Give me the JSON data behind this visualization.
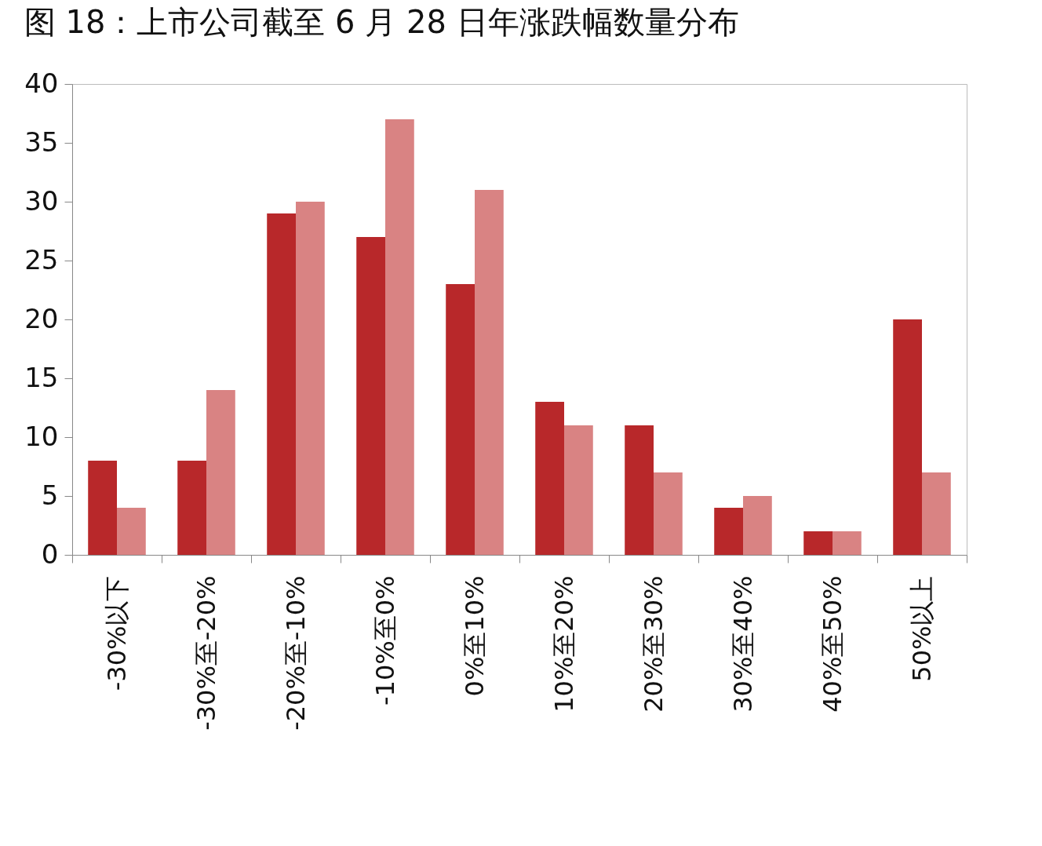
{
  "chart_data": {
    "type": "bar",
    "title": "图 18：上市公司截至 6 月 28 日年涨跌幅数量分布",
    "categories": [
      "-30%以下",
      "-30%至-20%",
      "-20%至-10%",
      "-10%至0%",
      "0%至10%",
      "10%至20%",
      "20%至30%",
      "30%至40%",
      "40%至50%",
      "50%以上"
    ],
    "series": [
      {
        "color": "#b8282a",
        "values": [
          8,
          8,
          29,
          27,
          23,
          13,
          11,
          4,
          2,
          20
        ]
      },
      {
        "color": "#d98383",
        "values": [
          4,
          14,
          30,
          37,
          31,
          11,
          7,
          5,
          2,
          7
        ]
      }
    ],
    "ylim": [
      0,
      40
    ],
    "yticks": [
      0,
      5,
      10,
      15,
      20,
      25,
      30,
      35,
      40
    ]
  }
}
